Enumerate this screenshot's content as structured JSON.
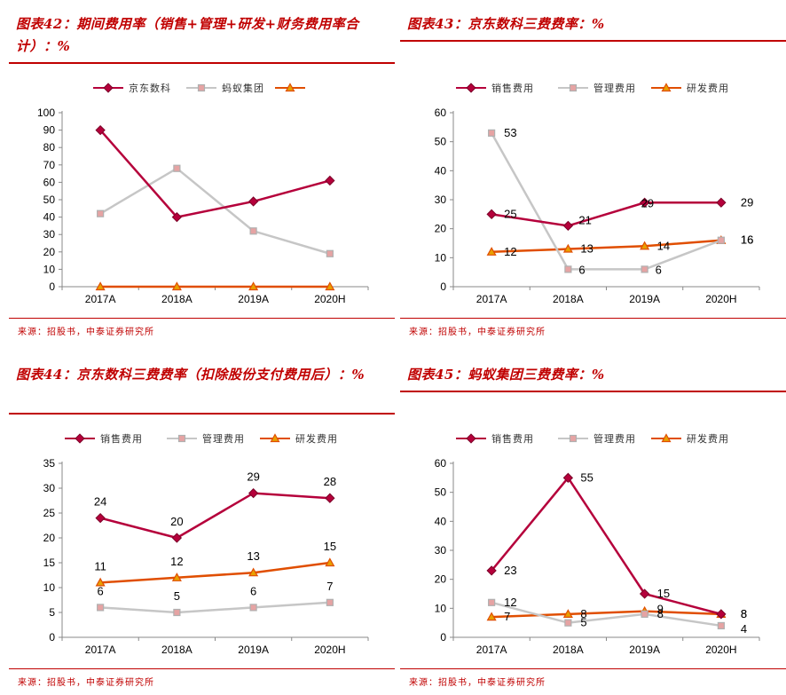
{
  "colors": {
    "accent": "#c00000",
    "series1": "#b5003b",
    "series2": "#c6c6c6",
    "series3": "#e04e00"
  },
  "panels": [
    {
      "title": "图表42：期间费用率（销售+管理+研发+财务费用率合计）：%",
      "source": "来源：招股书，中泰证券研究所"
    },
    {
      "title": "图表43：京东数科三费费率：%",
      "source": "来源：招股书，中泰证券研究所"
    },
    {
      "title": "图表44：京东数科三费费率（扣除股份支付费用后）：%",
      "source": "来源：招股书，中泰证券研究所"
    },
    {
      "title": "图表45：蚂蚁集团三费费率：%",
      "source": "来源：招股书，中泰证券研究所"
    }
  ],
  "chart_data": [
    {
      "type": "line",
      "title": "图表42：期间费用率（销售+管理+研发+财务费用率合计）：%",
      "categories": [
        "2017A",
        "2018A",
        "2019A",
        "2020H"
      ],
      "ylim": [
        0,
        100
      ],
      "yticks": [
        0,
        10,
        20,
        30,
        40,
        50,
        60,
        70,
        80,
        90,
        100
      ],
      "legend": "top",
      "data_labels": false,
      "series": [
        {
          "name": "京东数科",
          "values": [
            90,
            40,
            49,
            61
          ]
        },
        {
          "name": "蚂蚁集团",
          "values": [
            42,
            68,
            32,
            19
          ]
        },
        {
          "name": "",
          "values": [
            0,
            0,
            0,
            0
          ]
        }
      ]
    },
    {
      "type": "line",
      "title": "图表43：京东数科三费费率：%",
      "categories": [
        "2017A",
        "2018A",
        "2019A",
        "2020H"
      ],
      "ylim": [
        0,
        60
      ],
      "yticks": [
        0,
        10,
        20,
        30,
        40,
        50,
        60
      ],
      "legend": "top",
      "data_labels": true,
      "series": [
        {
          "name": "销售费用",
          "values": [
            25,
            21,
            29,
            29
          ]
        },
        {
          "name": "管理费用",
          "values": [
            53,
            6,
            6,
            16
          ]
        },
        {
          "name": "研发费用",
          "values": [
            12,
            13,
            14,
            16
          ]
        }
      ]
    },
    {
      "type": "line",
      "title": "图表44：京东数科三费费率（扣除股份支付费用后）：%",
      "categories": [
        "2017A",
        "2018A",
        "2019A",
        "2020H"
      ],
      "ylim": [
        0,
        35
      ],
      "yticks": [
        0,
        5,
        10,
        15,
        20,
        25,
        30,
        35
      ],
      "legend": "top",
      "data_labels": true,
      "series": [
        {
          "name": "销售费用",
          "values": [
            24,
            20,
            29,
            28
          ]
        },
        {
          "name": "管理费用",
          "values": [
            6,
            5,
            6,
            7
          ]
        },
        {
          "name": "研发费用",
          "values": [
            11,
            12,
            13,
            15
          ]
        }
      ]
    },
    {
      "type": "line",
      "title": "图表45：蚂蚁集团三费费率：%",
      "categories": [
        "2017A",
        "2018A",
        "2019A",
        "2020H"
      ],
      "ylim": [
        0,
        60
      ],
      "yticks": [
        0,
        10,
        20,
        30,
        40,
        50,
        60
      ],
      "legend": "top",
      "data_labels": true,
      "series": [
        {
          "name": "销售费用",
          "values": [
            23,
            55,
            15,
            8
          ]
        },
        {
          "name": "管理费用",
          "values": [
            12,
            5,
            8,
            4
          ]
        },
        {
          "name": "研发费用",
          "values": [
            7,
            8,
            9,
            8
          ]
        }
      ]
    }
  ]
}
